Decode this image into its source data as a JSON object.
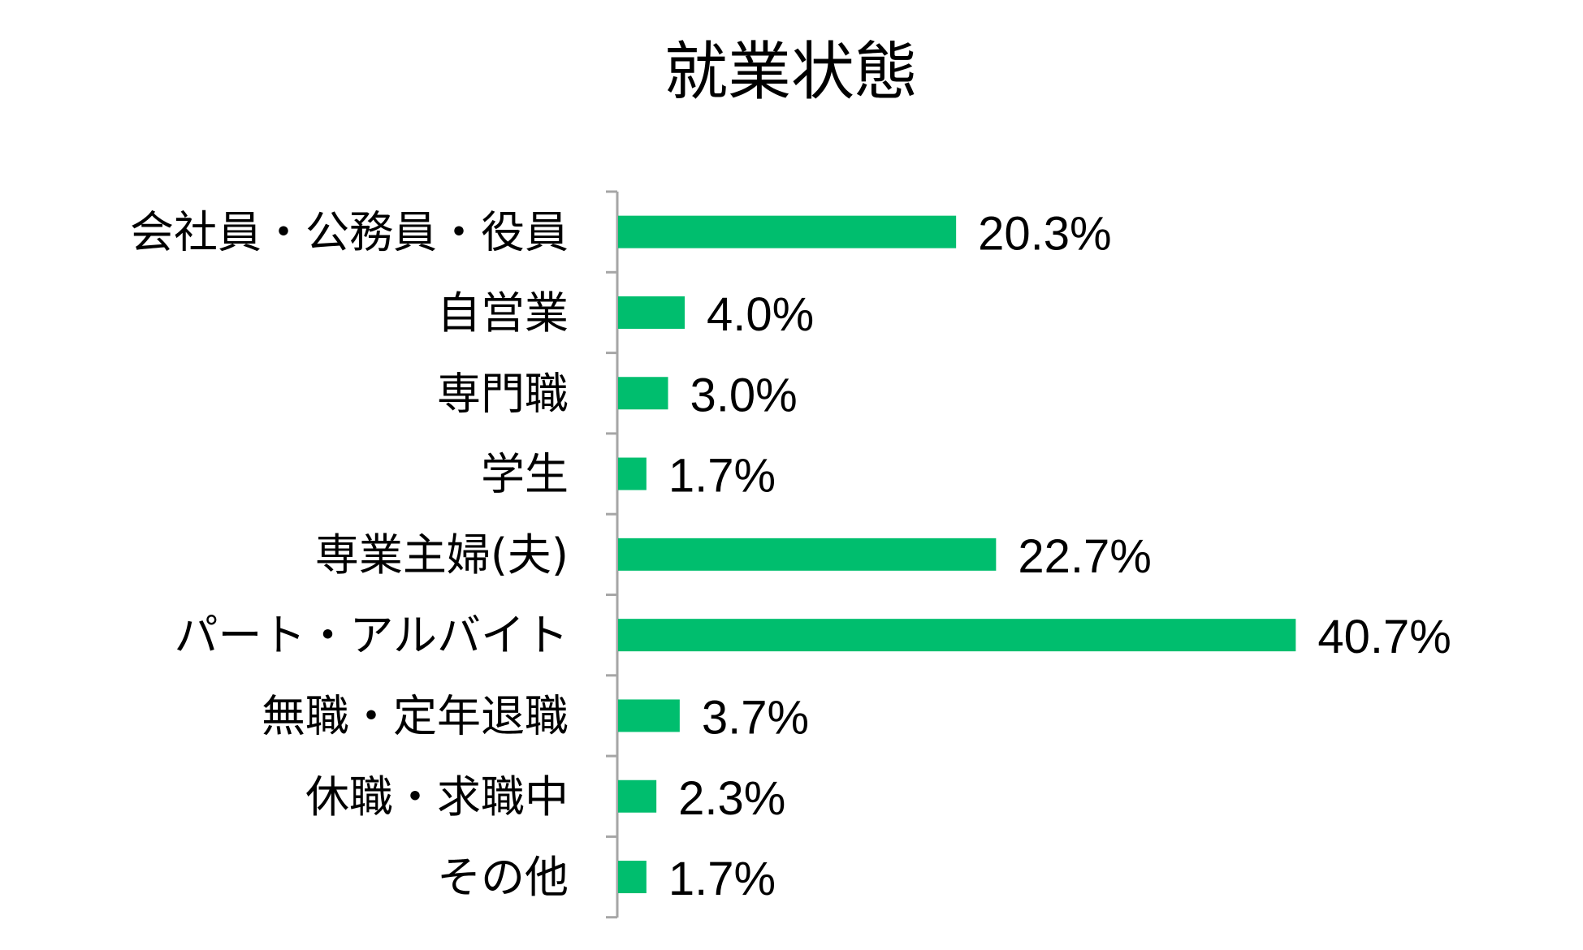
{
  "chart_data": {
    "type": "bar",
    "orientation": "horizontal",
    "title": "就業状態",
    "categories": [
      "会社員・公務員・役員",
      "自営業",
      "専門職",
      "学生",
      "専業主婦(夫)",
      "パート・アルバイト",
      "無職・定年退職",
      "休職・求職中",
      "その他"
    ],
    "values": [
      20.3,
      4.0,
      3.0,
      1.7,
      22.7,
      40.7,
      3.7,
      2.3,
      1.7
    ],
    "value_labels": [
      "20.3%",
      "4.0%",
      "3.0%",
      "1.7%",
      "22.7%",
      "40.7%",
      "3.7%",
      "2.3%",
      "1.7%"
    ],
    "unit": "%",
    "xlim": [
      0,
      50
    ],
    "grid": false,
    "legend": "none",
    "bar_color": "#00BE6E",
    "axis_color": "#A6A6A6"
  }
}
